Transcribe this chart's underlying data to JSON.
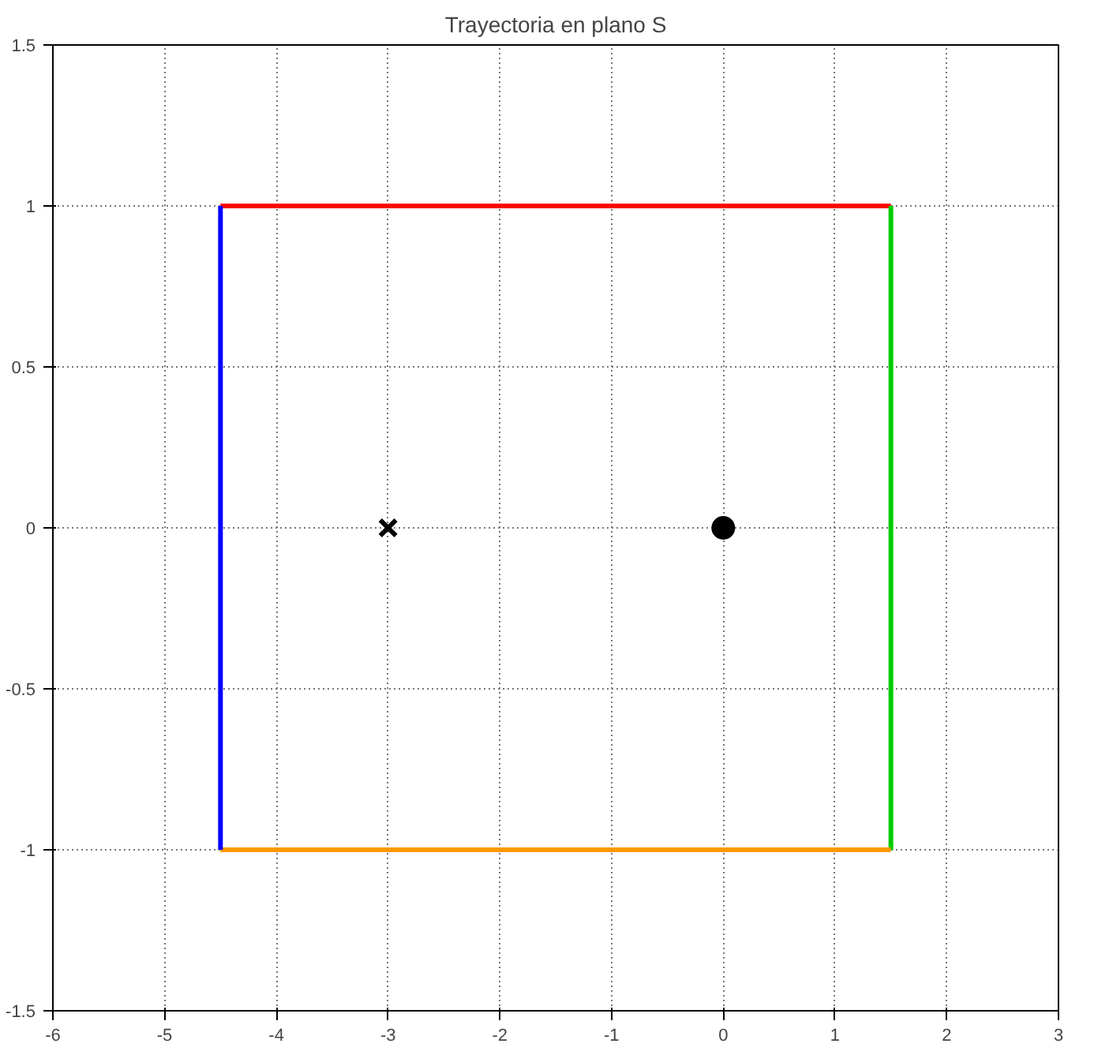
{
  "chart_data": {
    "type": "line",
    "title": "Trayectoria en plano S",
    "series": [
      {
        "color": "#ff0000",
        "x": [
          -4.5,
          1.5
        ],
        "values": [
          1,
          1
        ]
      },
      {
        "color": "#00cc00",
        "x": [
          1.5,
          1.5
        ],
        "values": [
          1,
          -1
        ]
      },
      {
        "color": "#ff9900",
        "x": [
          1.5,
          -4.5
        ],
        "values": [
          -1,
          -1
        ]
      },
      {
        "color": "#0000ff",
        "x": [
          -4.5,
          -4.5
        ],
        "values": [
          -1,
          1
        ]
      },
      {
        "type": "scatter",
        "marker": "cross",
        "color": "#000000",
        "x": [
          -3
        ],
        "values": [
          0
        ]
      },
      {
        "type": "scatter",
        "marker": "circle",
        "color": "#000000",
        "x": [
          0
        ],
        "values": [
          0
        ]
      }
    ],
    "xlim": [
      -6,
      3
    ],
    "xticks": [
      -6,
      -5,
      -4,
      -3,
      -2,
      -1,
      0,
      1,
      2,
      3
    ],
    "ylim": [
      -1.5,
      1.5
    ],
    "yticks": [
      -1.5,
      -1,
      -0.5,
      0,
      0.5,
      1,
      1.5
    ],
    "grid": true,
    "line_style": "solid"
  }
}
